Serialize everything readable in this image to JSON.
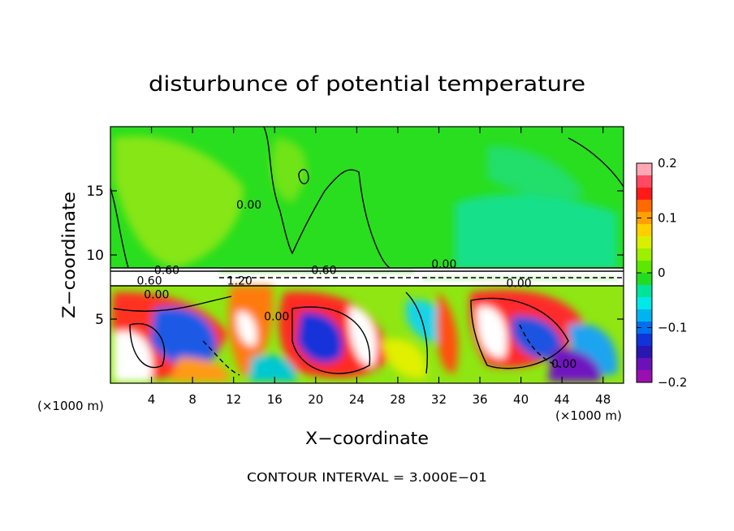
{
  "chart_data": {
    "type": "heatmap",
    "title": "disturbunce of potential temperature",
    "xlabel": "X−coordinate",
    "ylabel": "Z−coordinate",
    "x_unit_left": "(×1000 m)",
    "x_unit_right": "(×1000 m)",
    "footer": "CONTOUR INTERVAL = 3.000E−01",
    "xlim": [
      0,
      50
    ],
    "ylim": [
      0,
      20
    ],
    "x_ticks": [
      4,
      8,
      12,
      16,
      20,
      24,
      28,
      32,
      36,
      40,
      44,
      48
    ],
    "x_tick_labels": [
      "4",
      "8",
      "12",
      "16",
      "20",
      "24",
      "28",
      "32",
      "36",
      "40",
      "44",
      "48"
    ],
    "y_ticks": [
      5,
      10,
      15
    ],
    "y_tick_labels": [
      "5",
      "10",
      "15"
    ],
    "colorbar": {
      "range": [
        -0.2,
        0.2
      ],
      "tick_values": [
        0.2,
        0.1,
        0,
        -0.1,
        -0.2
      ],
      "tick_labels": [
        "0.2",
        "0.1",
        "0",
        "−0.1",
        "−0.2"
      ],
      "colors": [
        "#ffa8b4",
        "#ff4a62",
        "#ff1a1a",
        "#ff6a00",
        "#ffa000",
        "#ffd000",
        "#d8f000",
        "#9cf000",
        "#5ce800",
        "#22dc22",
        "#00e49a",
        "#00e8e8",
        "#00b4f0",
        "#0070f0",
        "#1034d8",
        "#2a16b0",
        "#6a12b8",
        "#9a0fb0"
      ]
    },
    "contour_labels": [
      {
        "text": "0.00",
        "x": 13.5,
        "y": 13.6
      },
      {
        "text": "0.00",
        "x": 32.5,
        "y": 9.0
      },
      {
        "text": "0.60",
        "x": 5.5,
        "y": 8.5
      },
      {
        "text": "0.60",
        "x": 3.8,
        "y": 7.7
      },
      {
        "text": "1.20",
        "x": 12.6,
        "y": 7.7
      },
      {
        "text": "0.60",
        "x": 20.8,
        "y": 8.5
      },
      {
        "text": "0.00",
        "x": 39.8,
        "y": 7.5
      },
      {
        "text": "0.00",
        "x": 4.5,
        "y": 6.6
      },
      {
        "text": "0.00",
        "x": 16.2,
        "y": 4.9
      },
      {
        "text": "0.00",
        "x": 44.2,
        "y": 1.2
      }
    ]
  }
}
